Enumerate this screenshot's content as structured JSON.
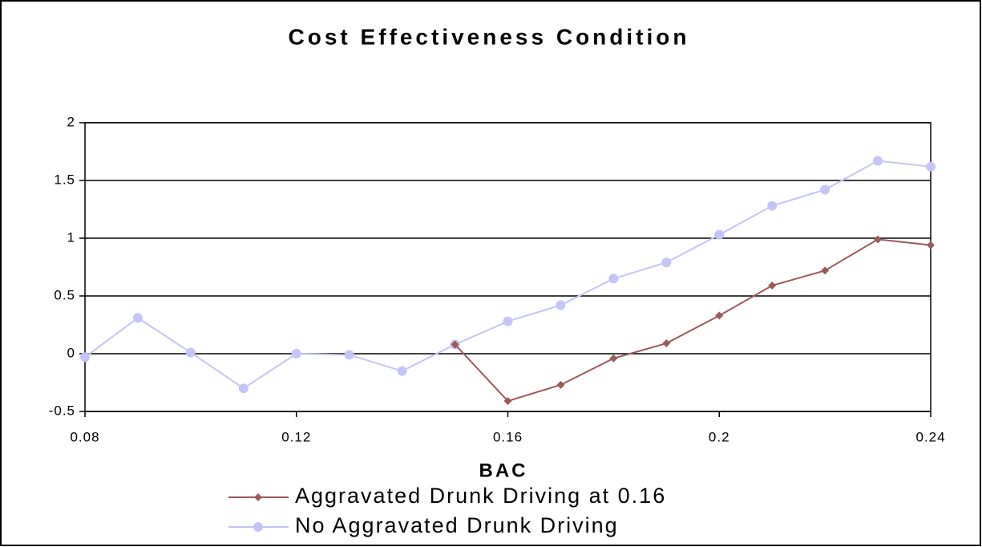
{
  "chart_data": {
    "type": "line",
    "title": "Cost Effectiveness Condition",
    "xlabel": "BAC",
    "x": [
      0.08,
      0.09,
      0.1,
      0.11,
      0.12,
      0.13,
      0.14,
      0.15,
      0.16,
      0.17,
      0.18,
      0.19,
      0.2,
      0.21,
      0.22,
      0.23,
      0.24
    ],
    "series": [
      {
        "name": "Aggravated Drunk Driving at 0.16",
        "color": "#9c5a5a",
        "values": [
          null,
          null,
          null,
          null,
          null,
          null,
          null,
          0.08,
          -0.41,
          -0.27,
          -0.04,
          0.09,
          0.33,
          0.59,
          0.72,
          0.99,
          0.94
        ]
      },
      {
        "name": "No Aggravated Drunk Driving",
        "color": "#c4c4f6",
        "values": [
          -0.03,
          0.31,
          0.01,
          -0.3,
          0.0,
          -0.01,
          -0.15,
          0.08,
          0.28,
          0.42,
          0.65,
          0.79,
          1.03,
          1.28,
          1.42,
          1.67,
          1.62
        ]
      }
    ],
    "xlim": [
      0.08,
      0.24
    ],
    "xticks": [
      0.08,
      0.12,
      0.16,
      0.2,
      0.24
    ],
    "ylim": [
      -0.5,
      2
    ],
    "yticks": [
      -0.5,
      0,
      0.5,
      1,
      1.5,
      2
    ],
    "grid": true
  }
}
